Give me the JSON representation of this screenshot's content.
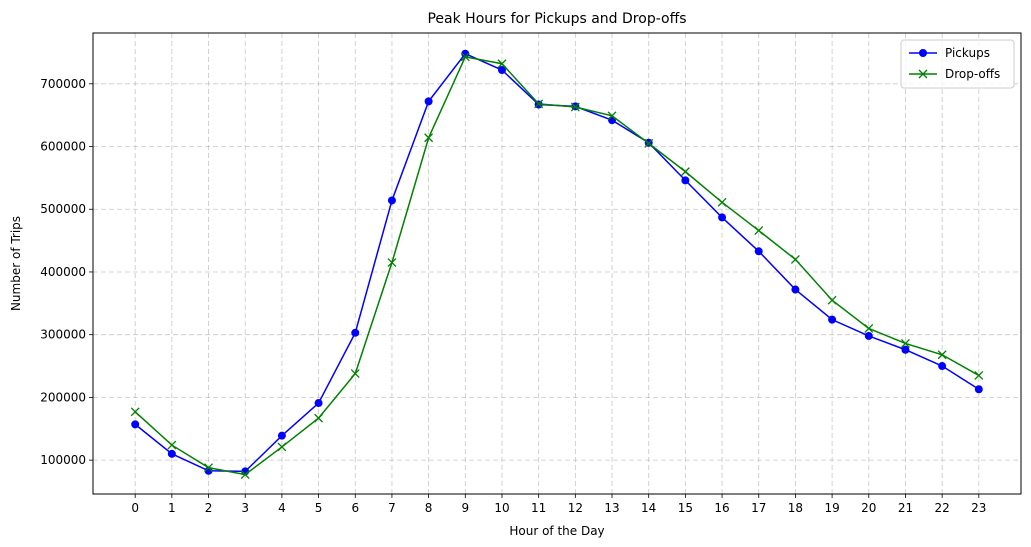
{
  "chart_data": {
    "type": "line",
    "title": "Peak Hours for Pickups and Drop-offs",
    "xlabel": "Hour of the Day",
    "ylabel": "Number of Trips",
    "x": [
      0,
      1,
      2,
      3,
      4,
      5,
      6,
      7,
      8,
      9,
      10,
      11,
      12,
      13,
      14,
      15,
      16,
      17,
      18,
      19,
      20,
      21,
      22,
      23
    ],
    "xlim": [
      -1.15,
      24.15
    ],
    "ylim": [
      46000,
      781000
    ],
    "yticks": [
      100000,
      200000,
      300000,
      400000,
      500000,
      600000,
      700000
    ],
    "grid": true,
    "legend_position": "top-right",
    "series": [
      {
        "name": "Pickups",
        "color": "#0000ff",
        "marker": "circle",
        "values": [
          157000,
          110000,
          83000,
          82000,
          139000,
          191000,
          303000,
          514000,
          672000,
          748000,
          722000,
          667000,
          664000,
          642000,
          606000,
          546000,
          487000,
          433000,
          372000,
          324000,
          298000,
          276000,
          250000,
          213000
        ]
      },
      {
        "name": "Drop-offs",
        "color": "#008000",
        "marker": "x",
        "values": [
          177000,
          124000,
          88000,
          77000,
          121000,
          167000,
          238000,
          415000,
          614000,
          743000,
          732000,
          668000,
          663000,
          649000,
          605000,
          560000,
          511000,
          466000,
          420000,
          355000,
          310000,
          286000,
          268000,
          235000
        ]
      }
    ]
  }
}
